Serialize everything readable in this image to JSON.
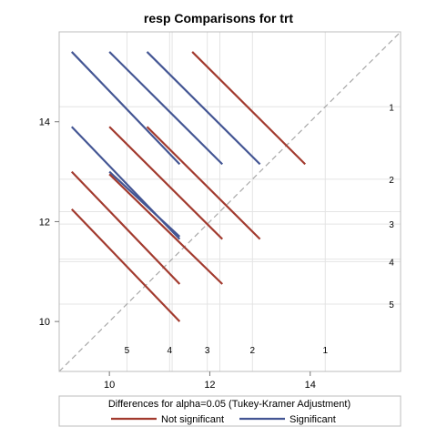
{
  "chart_data": {
    "type": "line",
    "title": "resp Comparisons for trt",
    "xlim": [
      9.0,
      15.8
    ],
    "ylim": [
      9.0,
      15.8
    ],
    "x_ticks": [
      10,
      12,
      14
    ],
    "y_ticks": [
      10,
      12,
      14
    ],
    "diagonal": true,
    "treatments": [
      {
        "label": "5",
        "mean": 10.35
      },
      {
        "label": "4",
        "mean": 11.2
      },
      {
        "label": "3",
        "mean": 11.95
      },
      {
        "label": "2",
        "mean": 12.85
      },
      {
        "label": "1",
        "mean": 14.3
      }
    ],
    "reference_level_values": [
      11.25,
      12.2,
      10.35,
      14.3,
      11.95,
      12.85,
      11.2
    ],
    "segments": [
      {
        "x1": 9.25,
        "y1": 15.4,
        "x2": 11.4,
        "y2": 13.15,
        "significant": true
      },
      {
        "x1": 10.0,
        "y1": 15.4,
        "x2": 12.25,
        "y2": 13.15,
        "significant": true
      },
      {
        "x1": 10.75,
        "y1": 15.4,
        "x2": 13.0,
        "y2": 13.15,
        "significant": true
      },
      {
        "x1": 11.65,
        "y1": 15.4,
        "x2": 13.9,
        "y2": 13.15,
        "significant": false
      },
      {
        "x1": 9.25,
        "y1": 13.9,
        "x2": 11.4,
        "y2": 11.65,
        "significant": true
      },
      {
        "x1": 10.0,
        "y1": 13.9,
        "x2": 12.25,
        "y2": 11.65,
        "significant": false
      },
      {
        "x1": 10.75,
        "y1": 13.9,
        "x2": 13.0,
        "y2": 11.65,
        "significant": false
      },
      {
        "x1": 10.0,
        "y1": 13.0,
        "x2": 11.4,
        "y2": 11.7,
        "significant": true
      },
      {
        "x1": 9.25,
        "y1": 13.0,
        "x2": 11.4,
        "y2": 10.75,
        "significant": false
      },
      {
        "x1": 10.0,
        "y1": 12.95,
        "x2": 12.25,
        "y2": 10.75,
        "significant": false
      },
      {
        "x1": 9.25,
        "y1": 12.25,
        "x2": 11.4,
        "y2": 10.0,
        "significant": false
      }
    ],
    "legend": {
      "title": "Differences for alpha=0.05 (Tukey-Kramer Adjustment)",
      "placement": "bottom",
      "entries": [
        {
          "label": "Not significant",
          "color": "#a23a2e"
        },
        {
          "label": "Significant",
          "color": "#445694"
        }
      ]
    },
    "colors": {
      "not_significant": "#a23a2e",
      "significant": "#445694",
      "diagonal": "#a8a8a8",
      "reference": "#e4e4e4",
      "frame": "#bcbcbc"
    }
  }
}
